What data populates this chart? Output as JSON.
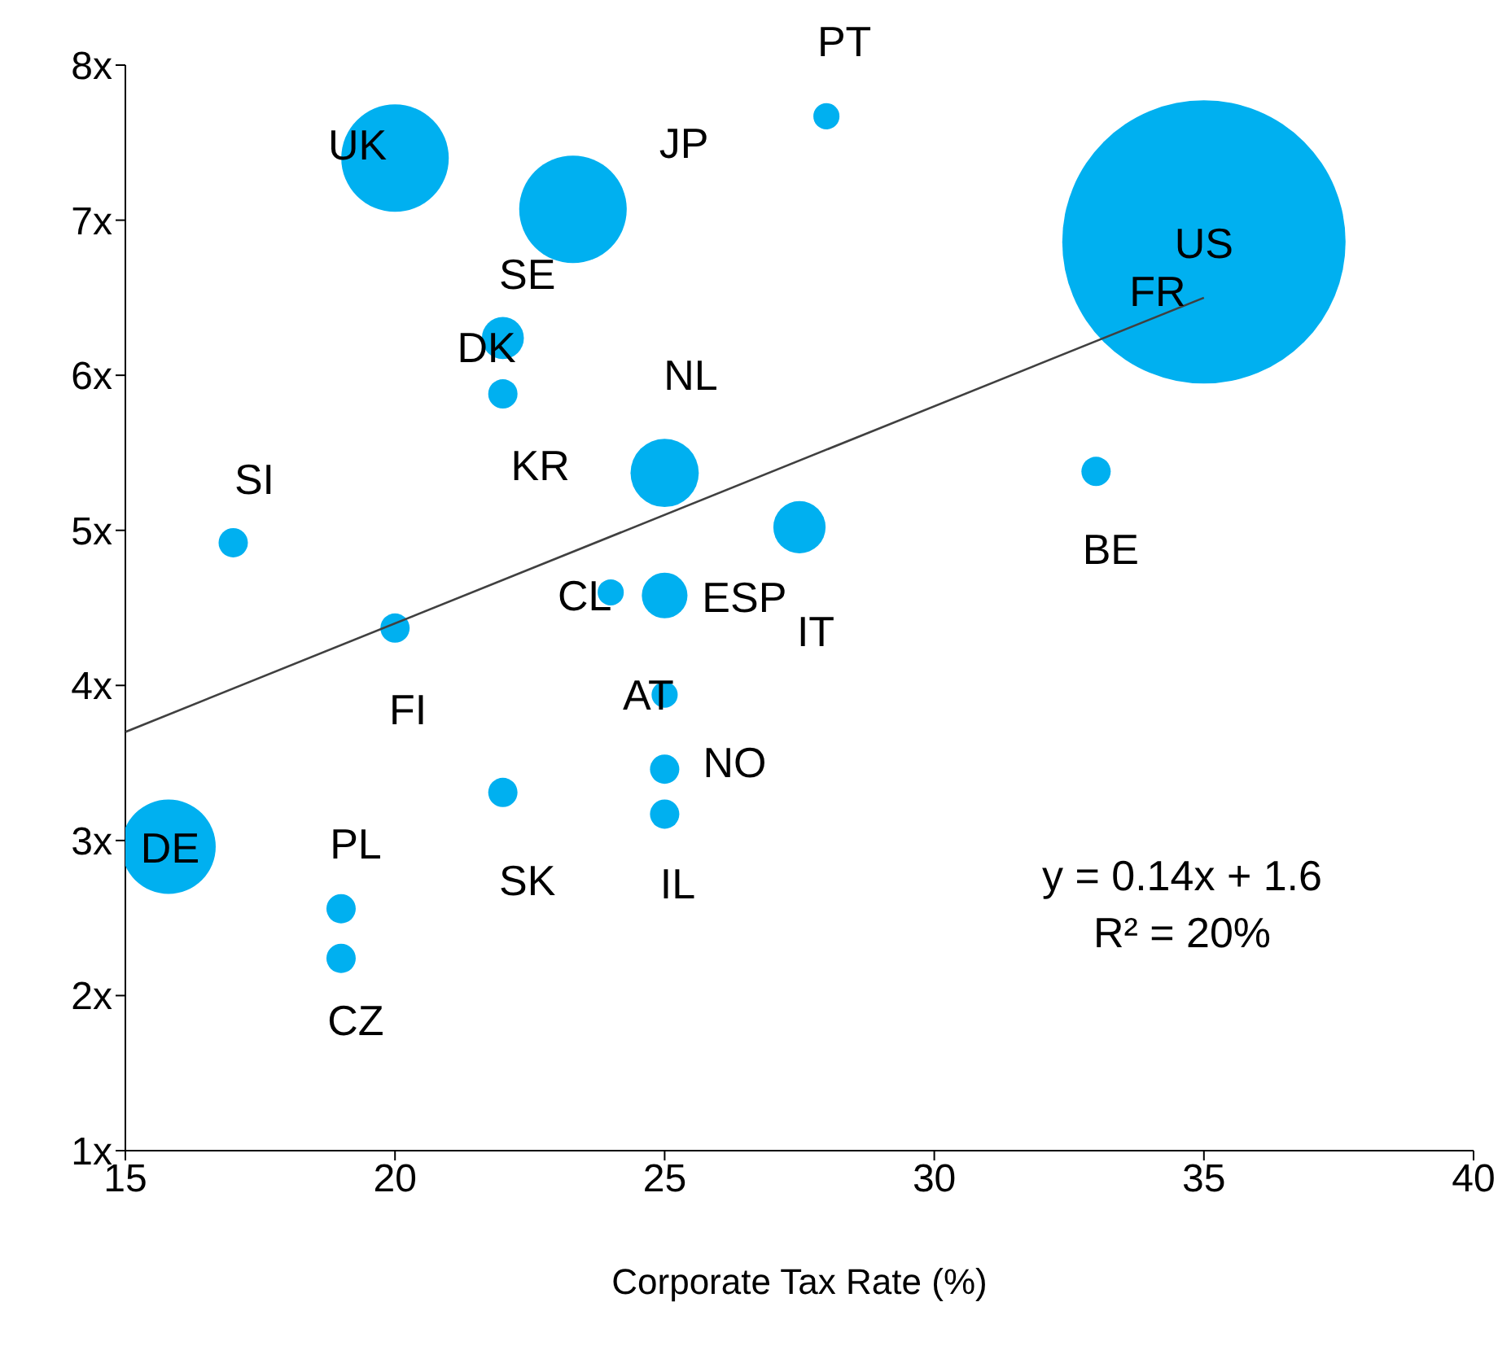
{
  "chart_data": {
    "type": "bubble",
    "xlabel": "Corporate Tax Rate (%)",
    "xlim": [
      15,
      40
    ],
    "xticks": [
      15,
      20,
      25,
      30,
      35,
      40
    ],
    "ylim": [
      1,
      8
    ],
    "yticks": [
      {
        "value": 1,
        "label": "1x"
      },
      {
        "value": 2,
        "label": "2x"
      },
      {
        "value": 3,
        "label": "3x"
      },
      {
        "value": 4,
        "label": "4x"
      },
      {
        "value": 5,
        "label": "5x"
      },
      {
        "value": 6,
        "label": "6x"
      },
      {
        "value": 7,
        "label": "7x"
      },
      {
        "value": 8,
        "label": "8x"
      }
    ],
    "grid": false,
    "legend": false,
    "series": [
      {
        "color": "#00b0f0",
        "x": [
          28.0,
          20.0,
          23.3,
          35.0,
          22.0,
          22.0,
          25.0,
          33.0,
          27.5,
          17.0,
          24.0,
          25.0,
          20.0,
          25.0,
          25.0,
          22.0,
          25.0,
          15.8,
          19.0,
          19.0
        ],
        "values": [
          7.67,
          7.4,
          7.07,
          6.86,
          6.24,
          5.88,
          5.37,
          5.38,
          5.02,
          4.92,
          4.6,
          4.58,
          4.37,
          3.94,
          3.46,
          3.31,
          3.17,
          2.96,
          2.56,
          2.24
        ],
        "sizes": [
          0.0085,
          0.144,
          0.144,
          1,
          0.022,
          0.0107,
          0.058,
          0.0107,
          0.034,
          0.0107,
          0.0085,
          0.026,
          0.0107,
          0.0085,
          0.0107,
          0.0107,
          0.0107,
          0.111,
          0.0107,
          0.0107
        ]
      },
      {
        "type": "line",
        "color": "#404040",
        "x": [
          15,
          35
        ],
        "values": [
          3.7,
          6.5
        ]
      }
    ],
    "annotations": [
      {
        "text": "PT",
        "x": 28.0,
        "y": 7.67
      },
      {
        "text": "UK",
        "x": 20.0,
        "y": 7.4
      },
      {
        "text": "SE",
        "x": 23.3,
        "y": 7.07
      },
      {
        "text": "US",
        "x": 35.0,
        "y": 6.86
      },
      {
        "text": "DK",
        "x": 22.0,
        "y": 6.24
      },
      {
        "text": "KR",
        "x": 22.0,
        "y": 5.88
      },
      {
        "text": "NL",
        "x": 25.0,
        "y": 5.37
      },
      {
        "text": "BE",
        "x": 33.0,
        "y": 5.38
      },
      {
        "text": "IT",
        "x": 27.5,
        "y": 5.02
      },
      {
        "text": "SI",
        "x": 17.0,
        "y": 4.92
      },
      {
        "text": "CL",
        "x": 24.0,
        "y": 4.6
      },
      {
        "text": "ESP",
        "x": 25.0,
        "y": 4.58
      },
      {
        "text": "FI",
        "x": 20.0,
        "y": 4.37
      },
      {
        "text": "AT",
        "x": 25.0,
        "y": 3.94
      },
      {
        "text": "NO",
        "x": 25.0,
        "y": 3.46
      },
      {
        "text": "SK",
        "x": 22.0,
        "y": 3.31
      },
      {
        "text": "IL",
        "x": 25.0,
        "y": 3.17
      },
      {
        "text": "DE",
        "x": 15.8,
        "y": 2.96
      },
      {
        "text": "PL",
        "x": 19.0,
        "y": 2.56
      },
      {
        "text": "CZ",
        "x": 19.0,
        "y": 2.24
      },
      "JP",
      "FR",
      "y = 0.14x + 1.6",
      "R² = 20%"
    ]
  }
}
